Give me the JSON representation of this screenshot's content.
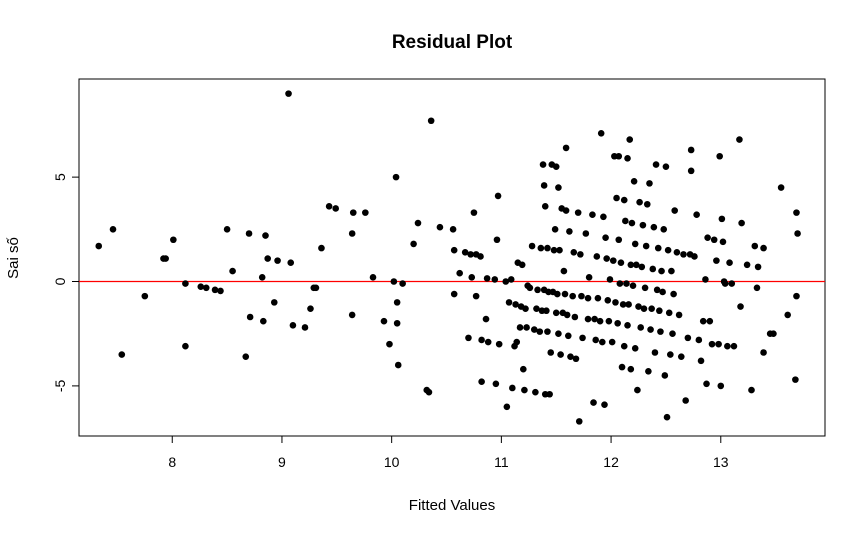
{
  "chart_data": {
    "type": "scatter",
    "title": "Residual Plot",
    "xlabel": "Fitted Values",
    "ylabel": "Sai số",
    "xlim": [
      7.15,
      13.95
    ],
    "ylim": [
      -7.4,
      9.7
    ],
    "xticks": [
      "8",
      "9",
      "10",
      "11",
      "12",
      "13"
    ],
    "yticks": [
      "-5",
      "0",
      "5"
    ],
    "reference_line": {
      "y": 0,
      "color": "#ff0000"
    },
    "point_color": "#000000",
    "grid": false,
    "points": [
      [
        7.33,
        1.7
      ],
      [
        7.46,
        2.5
      ],
      [
        7.54,
        -3.5
      ],
      [
        7.75,
        -0.7
      ],
      [
        7.92,
        1.1
      ],
      [
        7.94,
        1.1
      ],
      [
        8.01,
        2.0
      ],
      [
        8.12,
        -0.1
      ],
      [
        8.12,
        -3.1
      ],
      [
        8.26,
        -0.25
      ],
      [
        8.31,
        -0.3
      ],
      [
        8.39,
        -0.4
      ],
      [
        8.44,
        -0.45
      ],
      [
        8.5,
        2.5
      ],
      [
        8.55,
        0.5
      ],
      [
        8.67,
        -3.6
      ],
      [
        8.7,
        2.3
      ],
      [
        8.71,
        -1.7
      ],
      [
        8.82,
        0.2
      ],
      [
        8.83,
        -1.9
      ],
      [
        8.85,
        2.2
      ],
      [
        8.87,
        1.1
      ],
      [
        8.93,
        -1.0
      ],
      [
        8.96,
        1.0
      ],
      [
        9.06,
        9.0
      ],
      [
        9.08,
        0.9
      ],
      [
        9.1,
        -2.1
      ],
      [
        9.21,
        -2.2
      ],
      [
        9.26,
        -1.3
      ],
      [
        9.29,
        -0.3
      ],
      [
        9.31,
        -0.3
      ],
      [
        9.36,
        1.6
      ],
      [
        9.43,
        3.6
      ],
      [
        9.49,
        3.5
      ],
      [
        9.64,
        2.3
      ],
      [
        9.64,
        -1.6
      ],
      [
        9.65,
        3.3
      ],
      [
        9.76,
        3.3
      ],
      [
        9.83,
        0.2
      ],
      [
        9.93,
        -1.9
      ],
      [
        9.98,
        -3.0
      ],
      [
        10.02,
        0.0
      ],
      [
        10.04,
        5.0
      ],
      [
        10.05,
        -1.0
      ],
      [
        10.05,
        -2.0
      ],
      [
        10.06,
        -4.0
      ],
      [
        10.1,
        -0.1
      ],
      [
        10.2,
        1.8
      ],
      [
        10.24,
        2.8
      ],
      [
        10.32,
        -5.2
      ],
      [
        10.34,
        -5.3
      ],
      [
        10.36,
        7.7
      ],
      [
        10.44,
        2.6
      ],
      [
        10.56,
        2.5
      ],
      [
        10.57,
        1.5
      ],
      [
        10.57,
        -0.6
      ],
      [
        10.62,
        0.4
      ],
      [
        10.67,
        1.4
      ],
      [
        10.7,
        -2.7
      ],
      [
        10.72,
        1.3
      ],
      [
        10.73,
        0.2
      ],
      [
        10.75,
        3.3
      ],
      [
        10.77,
        1.3
      ],
      [
        10.77,
        -0.7
      ],
      [
        10.81,
        1.2
      ],
      [
        10.82,
        -4.8
      ],
      [
        10.82,
        -2.8
      ],
      [
        10.86,
        -1.8
      ],
      [
        10.87,
        0.15
      ],
      [
        10.88,
        -2.9
      ],
      [
        10.94,
        0.1
      ],
      [
        10.95,
        -4.9
      ],
      [
        10.96,
        2.0
      ],
      [
        10.97,
        4.1
      ],
      [
        10.98,
        -3.0
      ],
      [
        11.04,
        0.0
      ],
      [
        11.05,
        -6.0
      ],
      [
        11.07,
        -1.0
      ],
      [
        11.09,
        0.1
      ],
      [
        11.1,
        -5.1
      ],
      [
        11.12,
        -3.1
      ],
      [
        11.13,
        -1.1
      ],
      [
        11.14,
        -2.9
      ],
      [
        11.15,
        0.9
      ],
      [
        11.17,
        -2.2
      ],
      [
        11.18,
        -1.2
      ],
      [
        11.19,
        0.8
      ],
      [
        11.2,
        -4.2
      ],
      [
        11.21,
        -5.2
      ],
      [
        11.22,
        -1.3
      ],
      [
        11.23,
        -2.2
      ],
      [
        11.24,
        -0.2
      ],
      [
        11.26,
        -0.3
      ],
      [
        11.28,
        1.7
      ],
      [
        11.3,
        -2.3
      ],
      [
        11.31,
        -5.3
      ],
      [
        11.32,
        -1.3
      ],
      [
        11.33,
        -0.4
      ],
      [
        11.35,
        -2.4
      ],
      [
        11.36,
        1.6
      ],
      [
        11.37,
        -1.4
      ],
      [
        11.38,
        5.6
      ],
      [
        11.39,
        -0.4
      ],
      [
        11.39,
        4.6
      ],
      [
        11.4,
        3.6
      ],
      [
        11.4,
        -5.4
      ],
      [
        11.41,
        -1.4
      ],
      [
        11.42,
        -2.4
      ],
      [
        11.42,
        1.6
      ],
      [
        11.43,
        -0.5
      ],
      [
        11.44,
        -5.4
      ],
      [
        11.45,
        -3.4
      ],
      [
        11.46,
        5.6
      ],
      [
        11.47,
        -0.5
      ],
      [
        11.48,
        1.5
      ],
      [
        11.49,
        2.5
      ],
      [
        11.5,
        -1.5
      ],
      [
        11.5,
        5.5
      ],
      [
        11.51,
        -0.6
      ],
      [
        11.52,
        -2.5
      ],
      [
        11.52,
        4.5
      ],
      [
        11.53,
        1.5
      ],
      [
        11.54,
        -3.5
      ],
      [
        11.55,
        3.5
      ],
      [
        11.56,
        -1.5
      ],
      [
        11.57,
        0.5
      ],
      [
        11.58,
        -0.6
      ],
      [
        11.59,
        3.4
      ],
      [
        11.59,
        6.4
      ],
      [
        11.6,
        -1.6
      ],
      [
        11.61,
        -2.6
      ],
      [
        11.62,
        2.4
      ],
      [
        11.63,
        -3.6
      ],
      [
        11.65,
        -0.7
      ],
      [
        11.66,
        1.4
      ],
      [
        11.67,
        -1.7
      ],
      [
        11.68,
        -3.7
      ],
      [
        11.7,
        3.3
      ],
      [
        11.71,
        -6.7
      ],
      [
        11.72,
        1.3
      ],
      [
        11.73,
        -0.7
      ],
      [
        11.74,
        -2.7
      ],
      [
        11.77,
        2.3
      ],
      [
        11.79,
        -1.8
      ],
      [
        11.79,
        -0.8
      ],
      [
        11.8,
        0.2
      ],
      [
        11.83,
        3.2
      ],
      [
        11.84,
        -5.8
      ],
      [
        11.85,
        -1.8
      ],
      [
        11.86,
        -2.8
      ],
      [
        11.87,
        1.2
      ],
      [
        11.88,
        -0.8
      ],
      [
        11.9,
        -1.9
      ],
      [
        11.91,
        7.1
      ],
      [
        11.92,
        -2.9
      ],
      [
        11.93,
        3.1
      ],
      [
        11.94,
        -5.9
      ],
      [
        11.95,
        2.1
      ],
      [
        11.96,
        1.1
      ],
      [
        11.97,
        -0.9
      ],
      [
        11.98,
        -1.9
      ],
      [
        11.99,
        0.1
      ],
      [
        12.01,
        -2.9
      ],
      [
        12.02,
        1.0
      ],
      [
        12.03,
        6.0
      ],
      [
        12.04,
        -1.0
      ],
      [
        12.05,
        4.0
      ],
      [
        12.06,
        -2.0
      ],
      [
        12.07,
        2.0
      ],
      [
        12.07,
        6.0
      ],
      [
        12.08,
        -0.1
      ],
      [
        12.09,
        0.9
      ],
      [
        12.1,
        -4.1
      ],
      [
        12.11,
        -1.1
      ],
      [
        12.12,
        3.9
      ],
      [
        12.12,
        -3.1
      ],
      [
        12.13,
        2.9
      ],
      [
        12.14,
        -0.1
      ],
      [
        12.15,
        5.9
      ],
      [
        12.15,
        -2.1
      ],
      [
        12.16,
        -1.1
      ],
      [
        12.17,
        6.8
      ],
      [
        12.18,
        0.8
      ],
      [
        12.18,
        -4.2
      ],
      [
        12.19,
        2.8
      ],
      [
        12.2,
        -0.2
      ],
      [
        12.21,
        4.8
      ],
      [
        12.22,
        1.8
      ],
      [
        12.22,
        -3.2
      ],
      [
        12.23,
        0.8
      ],
      [
        12.24,
        -5.2
      ],
      [
        12.25,
        -1.2
      ],
      [
        12.26,
        3.8
      ],
      [
        12.27,
        -2.2
      ],
      [
        12.28,
        0.7
      ],
      [
        12.29,
        2.7
      ],
      [
        12.3,
        -1.3
      ],
      [
        12.31,
        -0.3
      ],
      [
        12.32,
        1.7
      ],
      [
        12.33,
        3.7
      ],
      [
        12.34,
        -4.3
      ],
      [
        12.35,
        4.7
      ],
      [
        12.36,
        -2.3
      ],
      [
        12.37,
        -1.3
      ],
      [
        12.38,
        0.6
      ],
      [
        12.39,
        2.6
      ],
      [
        12.4,
        -3.4
      ],
      [
        12.41,
        5.6
      ],
      [
        12.42,
        -0.4
      ],
      [
        12.43,
        1.6
      ],
      [
        12.44,
        -1.4
      ],
      [
        12.45,
        -2.4
      ],
      [
        12.46,
        0.5
      ],
      [
        12.47,
        -0.5
      ],
      [
        12.48,
        2.5
      ],
      [
        12.49,
        -4.5
      ],
      [
        12.5,
        5.5
      ],
      [
        12.51,
        -6.5
      ],
      [
        12.52,
        1.5
      ],
      [
        12.53,
        -1.5
      ],
      [
        12.54,
        -3.5
      ],
      [
        12.55,
        0.5
      ],
      [
        12.56,
        -2.5
      ],
      [
        12.57,
        -0.6
      ],
      [
        12.58,
        3.4
      ],
      [
        12.6,
        1.4
      ],
      [
        12.62,
        -1.6
      ],
      [
        12.64,
        -3.6
      ],
      [
        12.66,
        1.3
      ],
      [
        12.68,
        -5.7
      ],
      [
        12.7,
        -2.7
      ],
      [
        12.72,
        1.3
      ],
      [
        12.73,
        6.3
      ],
      [
        12.73,
        5.3
      ],
      [
        12.76,
        1.2
      ],
      [
        12.78,
        3.2
      ],
      [
        12.8,
        -2.8
      ],
      [
        12.82,
        -3.8
      ],
      [
        12.84,
        -1.9
      ],
      [
        12.86,
        0.1
      ],
      [
        12.87,
        -4.9
      ],
      [
        12.88,
        2.1
      ],
      [
        12.9,
        -1.9
      ],
      [
        12.92,
        -3.0
      ],
      [
        12.94,
        2.0
      ],
      [
        12.96,
        1.0
      ],
      [
        12.98,
        -3.0
      ],
      [
        12.99,
        6.0
      ],
      [
        13.0,
        -5.0
      ],
      [
        13.01,
        3.0
      ],
      [
        13.02,
        1.9
      ],
      [
        13.03,
        0.0
      ],
      [
        13.04,
        -0.1
      ],
      [
        13.06,
        -3.1
      ],
      [
        13.08,
        0.9
      ],
      [
        13.1,
        -0.1
      ],
      [
        13.12,
        -3.1
      ],
      [
        13.17,
        6.8
      ],
      [
        13.18,
        -1.2
      ],
      [
        13.19,
        2.8
      ],
      [
        13.24,
        0.8
      ],
      [
        13.28,
        -5.2
      ],
      [
        13.31,
        1.7
      ],
      [
        13.33,
        -0.3
      ],
      [
        13.34,
        0.7
      ],
      [
        13.39,
        1.6
      ],
      [
        13.39,
        -3.4
      ],
      [
        13.45,
        -2.5
      ],
      [
        13.48,
        -2.5
      ],
      [
        13.55,
        4.5
      ],
      [
        13.61,
        -1.6
      ],
      [
        13.68,
        -4.7
      ],
      [
        13.69,
        -0.7
      ],
      [
        13.69,
        3.3
      ],
      [
        13.7,
        2.3
      ]
    ]
  }
}
